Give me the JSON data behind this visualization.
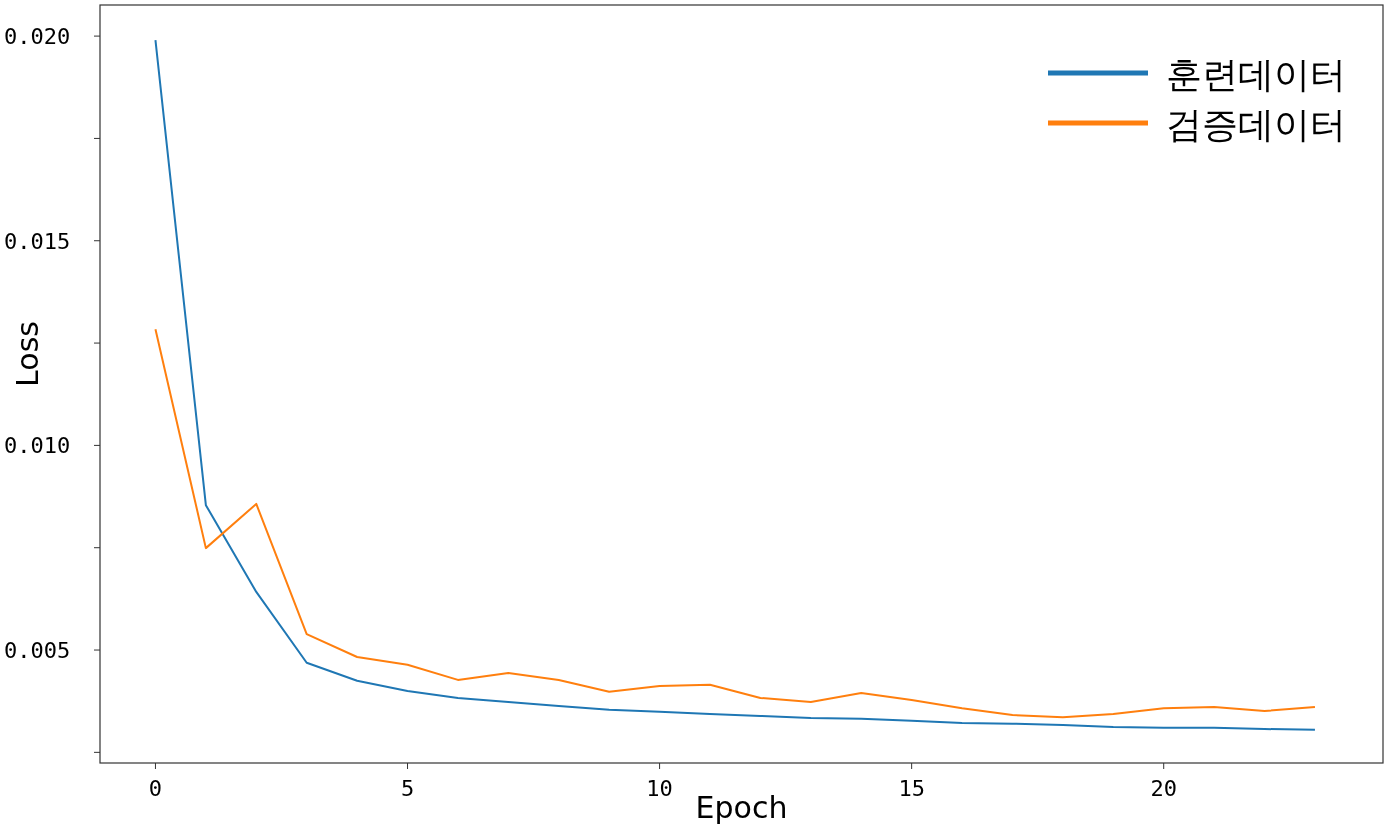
{
  "chart_data": {
    "type": "line",
    "xlabel": "Epoch",
    "ylabel": "Loss",
    "x": [
      0,
      1,
      2,
      3,
      4,
      5,
      6,
      7,
      8,
      9,
      10,
      11,
      12,
      13,
      14,
      15,
      16,
      17,
      18,
      19,
      20,
      21,
      22,
      23
    ],
    "series": [
      {
        "name": "훈련데이터",
        "color": "#1f77b4",
        "values": [
          0.0199,
          0.00854,
          0.00642,
          0.00469,
          0.00425,
          0.004,
          0.00383,
          0.00373,
          0.00363,
          0.00354,
          0.00349,
          0.00344,
          0.00339,
          0.00334,
          0.00332,
          0.00327,
          0.00322,
          0.0032,
          0.00317,
          0.00312,
          0.0031,
          0.0031,
          0.00307,
          0.00305
        ]
      },
      {
        "name": "검증데이터",
        "color": "#ff7f0e",
        "values": [
          0.01284,
          0.00749,
          0.00857,
          0.00539,
          0.00483,
          0.00464,
          0.00427,
          0.00444,
          0.00427,
          0.00398,
          0.00412,
          0.00415,
          0.00383,
          0.00373,
          0.00395,
          0.00378,
          0.00358,
          0.00341,
          0.00336,
          0.00344,
          0.00358,
          0.00361,
          0.00351,
          0.00361
        ]
      }
    ],
    "xlim": [
      -1.1,
      24.35
    ],
    "xticks": [
      0,
      5,
      10,
      15,
      20
    ],
    "ylim": [
      0.00224,
      0.02076
    ],
    "yticks": [
      {
        "value": 0.0025,
        "label": null
      },
      {
        "value": 0.005,
        "label": "0.005"
      },
      {
        "value": 0.0075,
        "label": null
      },
      {
        "value": 0.01,
        "label": "0.010"
      },
      {
        "value": 0.0125,
        "label": null
      },
      {
        "value": 0.015,
        "label": "0.015"
      },
      {
        "value": 0.0175,
        "label": null
      },
      {
        "value": 0.02,
        "label": "0.020"
      }
    ],
    "grid": false,
    "legend": "top right",
    "line_style": "solid",
    "marker": "none"
  }
}
